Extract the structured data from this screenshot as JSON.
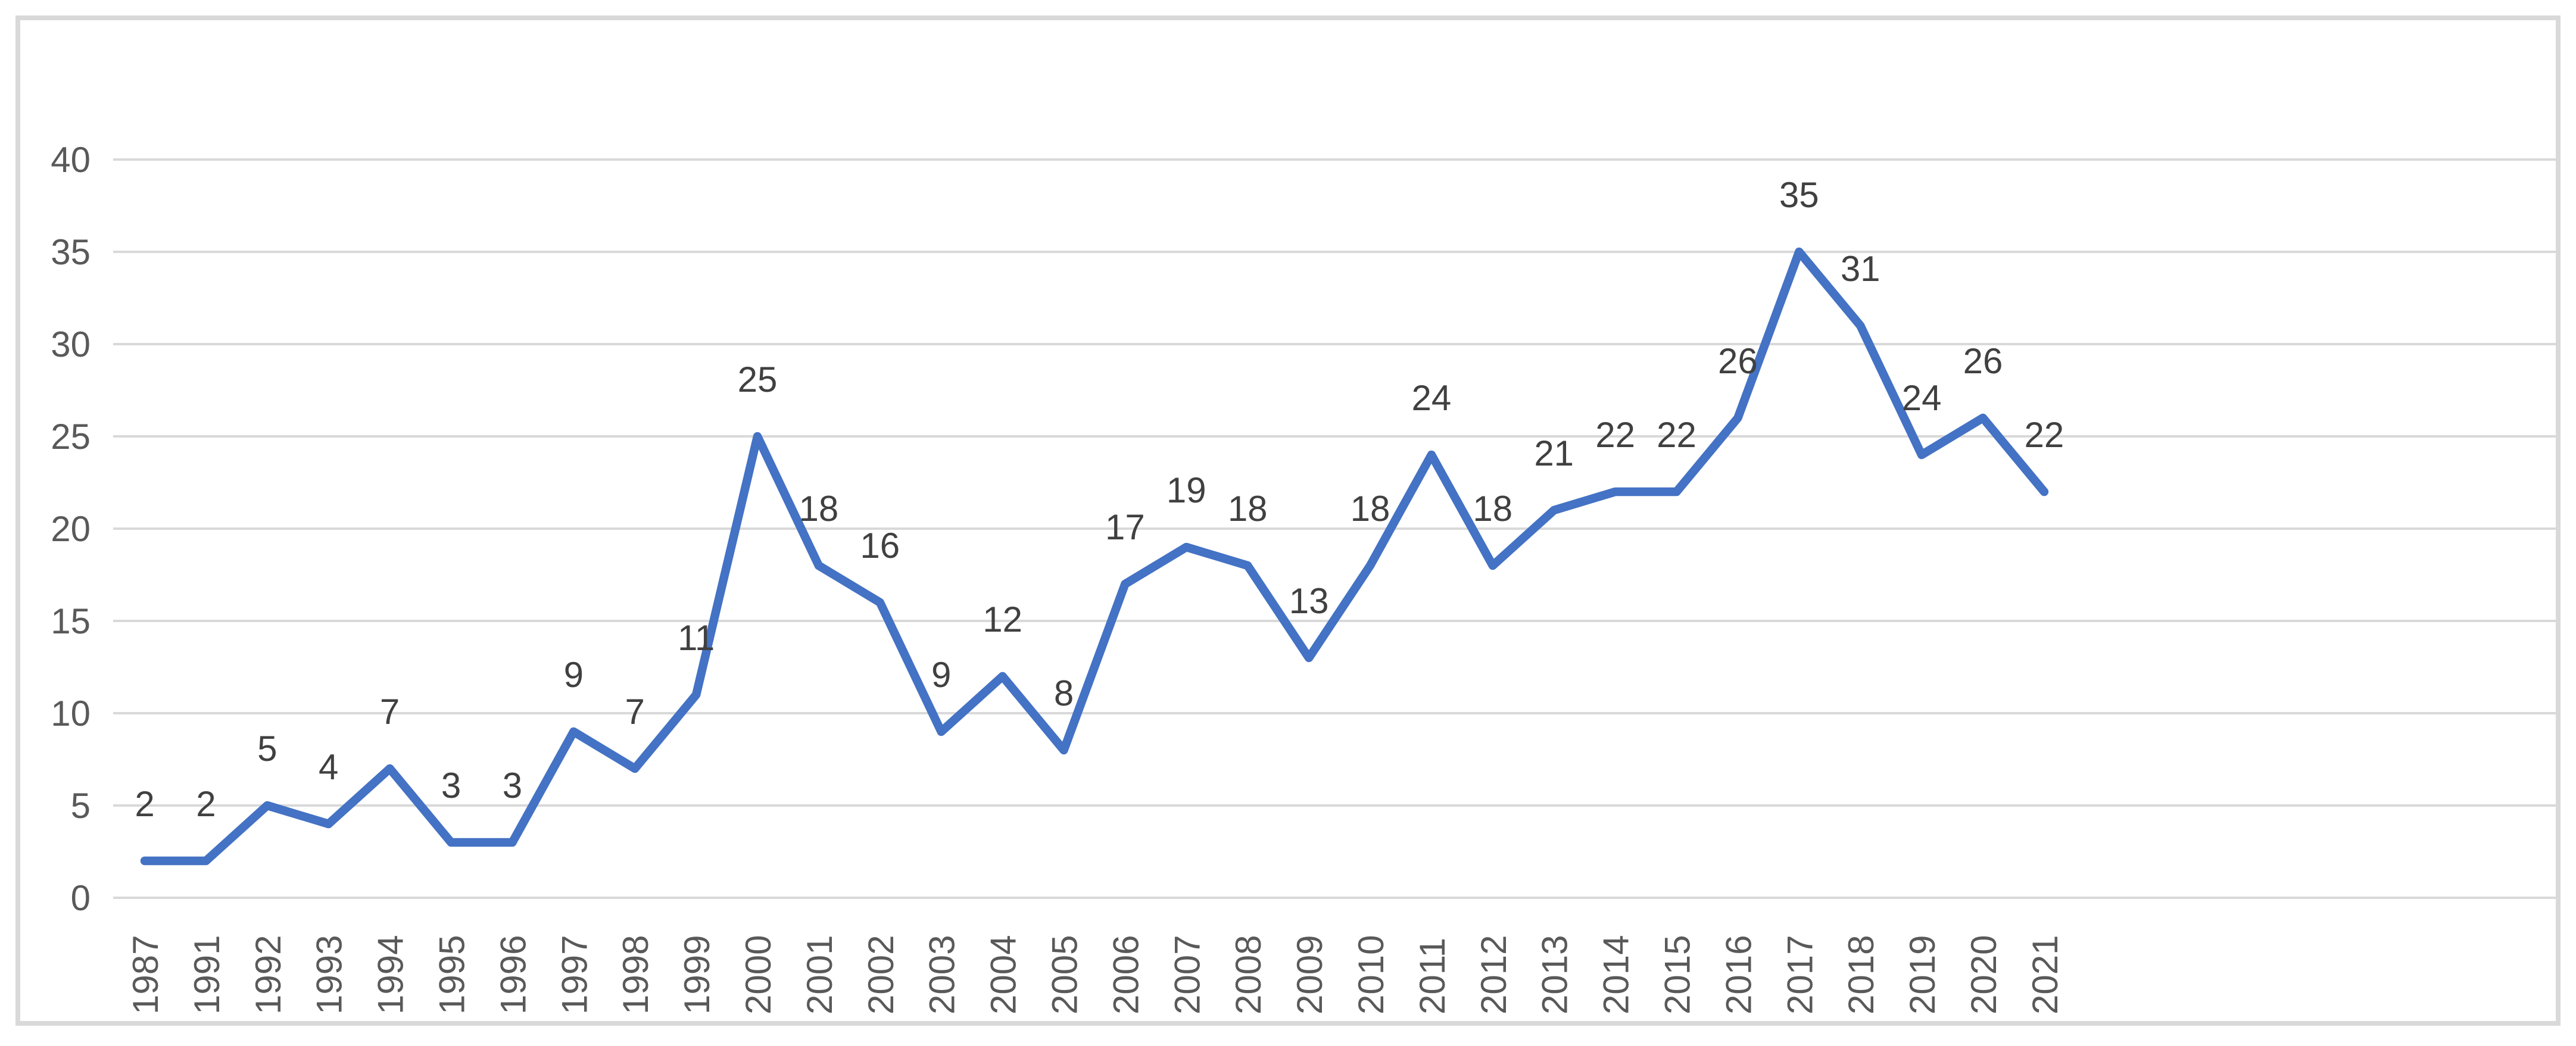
{
  "chart": {
    "background_color": "#FFFFFF",
    "border_color": "#D9D9D9",
    "gridline_color": "#D9D9D9",
    "line_color": "#4472C4",
    "axis_label_color": "#595959",
    "data_label_color": "#404040"
  },
  "chart_data": {
    "type": "line",
    "title": "",
    "xlabel": "",
    "ylabel": "",
    "categories": [
      "1987",
      "1991",
      "1992",
      "1993",
      "1994",
      "1995",
      "1996",
      "1997",
      "1998",
      "1999",
      "2000",
      "2001",
      "2002",
      "2003",
      "2004",
      "2005",
      "2006",
      "2007",
      "2008",
      "2009",
      "2010",
      "2011",
      "2012",
      "2013",
      "2014",
      "2015",
      "2016",
      "2017",
      "2018",
      "2019",
      "2020",
      "2021"
    ],
    "series": [
      {
        "name": "",
        "values": [
          2,
          2,
          5,
          4,
          7,
          3,
          3,
          9,
          7,
          11,
          25,
          18,
          16,
          9,
          12,
          8,
          17,
          19,
          18,
          13,
          18,
          24,
          18,
          21,
          22,
          22,
          26,
          35,
          31,
          24,
          26,
          22
        ]
      }
    ],
    "data_labels_visible": true,
    "ylim": [
      0,
      40
    ],
    "yticks": [
      0,
      5,
      10,
      15,
      20,
      25,
      30,
      35,
      40
    ],
    "grid": "horizontal",
    "legend": "none",
    "x_tick_rotation": -90
  }
}
